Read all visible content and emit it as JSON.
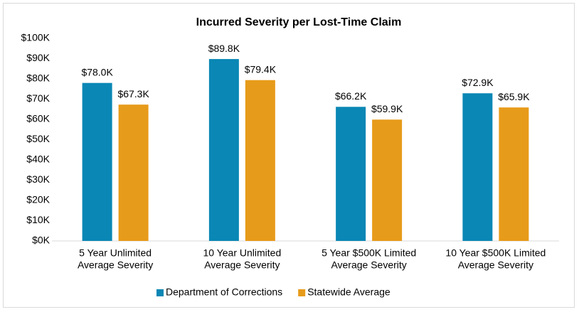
{
  "chart_data": {
    "type": "bar",
    "title": "Incurred Severity per Lost-Time Claim",
    "categories": [
      [
        "5 Year Unlimited",
        "Average Severity"
      ],
      [
        "10 Year Unlimited",
        "Average Severity"
      ],
      [
        "5 Year $500K Limited",
        "Average Severity"
      ],
      [
        "10 Year $500K Limited",
        "Average Severity"
      ]
    ],
    "series": [
      {
        "name": "Department of Corrections",
        "color": "#0a87b5",
        "values": [
          78.0,
          89.8,
          66.2,
          72.9
        ],
        "value_labels": [
          "$78.0K",
          "$89.8K",
          "$66.2K",
          "$72.9K"
        ]
      },
      {
        "name": "Statewide Average",
        "color": "#e79b1a",
        "values": [
          67.3,
          79.4,
          59.9,
          65.9
        ],
        "value_labels": [
          "$67.3K",
          "$79.4K",
          "$59.9K",
          "$65.9K"
        ]
      }
    ],
    "ylim": [
      0,
      100
    ],
    "yticks": [
      {
        "value": 0,
        "label": "$0K"
      },
      {
        "value": 10,
        "label": "$10K"
      },
      {
        "value": 20,
        "label": "$20K"
      },
      {
        "value": 30,
        "label": "$30K"
      },
      {
        "value": 40,
        "label": "$40K"
      },
      {
        "value": 50,
        "label": "$50K"
      },
      {
        "value": 60,
        "label": "$60K"
      },
      {
        "value": 70,
        "label": "$70K"
      },
      {
        "value": 80,
        "label": "$80K"
      },
      {
        "value": 90,
        "label": "$90K"
      },
      {
        "value": 100,
        "label": "$100K"
      }
    ],
    "legend": "bottom"
  }
}
